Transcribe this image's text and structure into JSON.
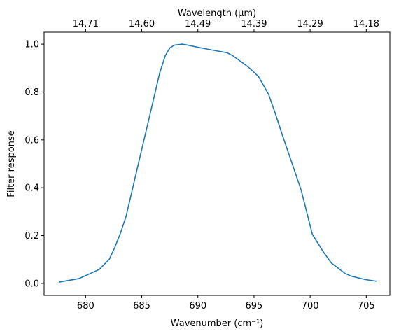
{
  "chart_data": {
    "type": "line",
    "xlabel": "Wavenumber (cm⁻¹)",
    "ylabel": "Filter response",
    "x2label": "Wavelength (μm)",
    "xlim": [
      676.3,
      707.1
    ],
    "ylim": [
      -0.05,
      1.05
    ],
    "xticks": [
      680,
      685,
      690,
      695,
      700,
      705
    ],
    "xtick_labels": [
      "680",
      "685",
      "690",
      "695",
      "700",
      "705"
    ],
    "yticks": [
      0.0,
      0.2,
      0.4,
      0.6,
      0.8,
      1.0
    ],
    "ytick_labels": [
      "0.0",
      "0.2",
      "0.4",
      "0.6",
      "0.8",
      "1.0"
    ],
    "x2tick_labels": [
      "14.71",
      "14.60",
      "14.49",
      "14.39",
      "14.29",
      "14.18"
    ],
    "grid": false,
    "color": "#1f77b4",
    "series": [
      {
        "x": [
          677.6,
          679.4,
          681.2,
          682.1,
          682.6,
          683.1,
          683.6,
          684.1,
          684.6,
          685.1,
          685.6,
          686.1,
          686.6,
          687.1,
          687.5,
          687.9,
          688.6,
          689.2,
          690.1,
          691.1,
          692.6,
          693.1,
          694.1,
          694.6,
          695.4,
          696.3,
          696.9,
          697.6,
          698.4,
          699.2,
          700.2,
          701.2,
          701.9,
          702.6,
          703.1,
          703.7,
          704.9,
          705.9
        ],
        "y": [
          0.005,
          0.02,
          0.058,
          0.1,
          0.15,
          0.21,
          0.28,
          0.38,
          0.48,
          0.58,
          0.68,
          0.78,
          0.88,
          0.952,
          0.984,
          0.996,
          1.0,
          0.995,
          0.986,
          0.977,
          0.964,
          0.952,
          0.918,
          0.9,
          0.865,
          0.79,
          0.71,
          0.61,
          0.5,
          0.39,
          0.205,
          0.13,
          0.085,
          0.06,
          0.042,
          0.03,
          0.016,
          0.009
        ]
      }
    ]
  }
}
